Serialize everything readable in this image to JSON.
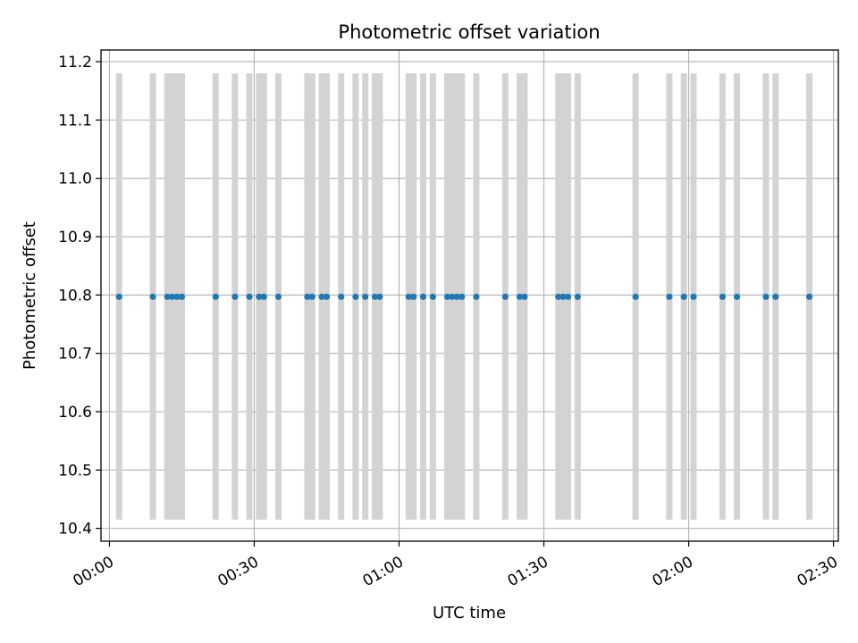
{
  "chart_data": {
    "type": "scatter",
    "title": "Photometric offset variation",
    "xlabel": "UTC time",
    "ylabel": "Photometric offset",
    "x_axis_type": "time",
    "xlim": [
      "23:58:15",
      "02:31:00"
    ],
    "ylim": [
      10.378,
      11.22
    ],
    "x_ticks": [
      "00:00",
      "00:30",
      "01:00",
      "01:30",
      "02:00",
      "02:30"
    ],
    "y_ticks": [
      10.4,
      10.5,
      10.6,
      10.7,
      10.8,
      10.9,
      11.0,
      11.1,
      11.2
    ],
    "grid": true,
    "legend": "none",
    "series": [
      {
        "kind": "errorbar",
        "marker_color": "#1f77b4",
        "error_color": "#d3d3d3",
        "error_low": 10.415,
        "error_high": 11.18,
        "x": [
          "00:02",
          "00:09",
          "00:12",
          "00:13",
          "00:14",
          "00:15",
          "00:22",
          "00:26",
          "00:29",
          "00:31",
          "00:32",
          "00:35",
          "00:41",
          "00:42",
          "00:44",
          "00:45",
          "00:48",
          "00:51",
          "00:53",
          "00:55",
          "00:56",
          "01:02",
          "01:03",
          "01:05",
          "01:07",
          "01:10",
          "01:11",
          "01:12",
          "01:13",
          "01:16",
          "01:22",
          "01:25",
          "01:26",
          "01:33",
          "01:34",
          "01:35",
          "01:37",
          "01:49",
          "01:56",
          "01:59",
          "02:01",
          "02:07",
          "02:10",
          "02:16",
          "02:18",
          "02:25"
        ],
        "y": [
          10.797,
          10.797,
          10.797,
          10.797,
          10.797,
          10.797,
          10.797,
          10.797,
          10.797,
          10.797,
          10.797,
          10.797,
          10.797,
          10.797,
          10.797,
          10.797,
          10.797,
          10.797,
          10.797,
          10.797,
          10.797,
          10.797,
          10.797,
          10.797,
          10.797,
          10.797,
          10.797,
          10.797,
          10.797,
          10.797,
          10.797,
          10.797,
          10.797,
          10.797,
          10.797,
          10.797,
          10.797,
          10.797,
          10.797,
          10.797,
          10.797,
          10.797,
          10.797,
          10.797,
          10.797,
          10.797
        ]
      }
    ]
  }
}
